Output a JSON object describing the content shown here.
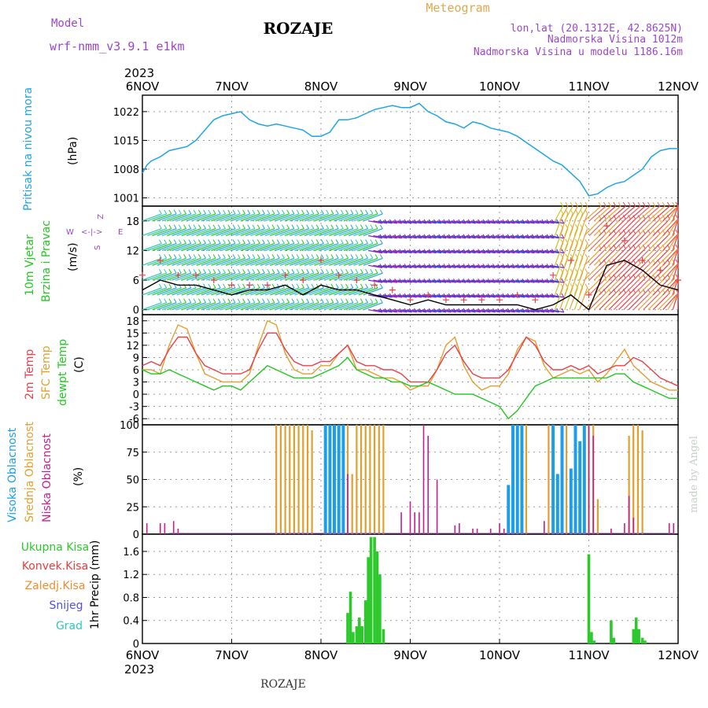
{
  "header": {
    "model_label": "Model",
    "model_name": "wrf-nmm_v3.9.1 e1km",
    "location": "ROZAJE",
    "kind": "Meteogram",
    "coords": "lon,lat (20.1312E, 42.8625N)",
    "elevation": "Nadmorska Visina 1012m",
    "model_elevation": "Nadmorska Visina u modelu 1186.16m",
    "year": "2023",
    "footer_location": "ROZAJE",
    "watermark": "made by Angel"
  },
  "colors": {
    "pressure": "#1ea5e8",
    "temp2m": "#e8404a",
    "sfc_temp": "#e0a030",
    "dewpoint": "#22c820",
    "high_cloud": "#1e9ee8",
    "mid_cloud": "#e0a030",
    "low_cloud": "#c81e8c",
    "precip_total": "#2cc82c",
    "convective": "#e83c3c",
    "freezing": "#f08c2c",
    "snow": "#5050e0",
    "graupel": "#2ec8c0",
    "wind_label": "#22c820",
    "compass": "#9a46c8",
    "gust": "#e8404a"
  },
  "chart_data": [
    {
      "type": "line",
      "panel": "pressure",
      "ylabel": "Pritisak na nivou mora",
      "yunit": "(hPa)",
      "x_unit": "days since 6NOV 00Z",
      "x_ticks": [
        "6NOV",
        "7NOV",
        "8NOV",
        "9NOV",
        "10NOV",
        "11NOV",
        "12NOV"
      ],
      "ylim": [
        999,
        1026
      ],
      "yticks": [
        1001,
        1008,
        1015,
        1022
      ],
      "series": [
        {
          "name": "MSLP",
          "x": [
            0,
            0.05,
            0.1,
            0.2,
            0.3,
            0.4,
            0.5,
            0.6,
            0.7,
            0.8,
            0.9,
            1.0,
            1.1,
            1.2,
            1.3,
            1.4,
            1.5,
            1.6,
            1.7,
            1.8,
            1.9,
            2.0,
            2.1,
            2.2,
            2.3,
            2.4,
            2.5,
            2.6,
            2.7,
            2.8,
            2.9,
            3.0,
            3.1,
            3.2,
            3.3,
            3.4,
            3.5,
            3.6,
            3.7,
            3.8,
            3.9,
            4.0,
            4.1,
            4.2,
            4.3,
            4.4,
            4.5,
            4.6,
            4.7,
            4.8,
            4.9,
            5.0,
            5.1,
            5.2,
            5.3,
            5.4,
            5.5,
            5.6,
            5.7,
            5.8,
            5.9,
            6.0
          ],
          "values": [
            1007,
            1009,
            1010,
            1011,
            1012.5,
            1013,
            1013.5,
            1015,
            1017.5,
            1020,
            1021,
            1021.5,
            1022,
            1020,
            1019,
            1018.5,
            1019,
            1018.5,
            1018,
            1017.5,
            1016,
            1016,
            1017,
            1020,
            1020,
            1020.5,
            1021.5,
            1022.5,
            1023,
            1023.5,
            1023,
            1023,
            1024,
            1022,
            1021,
            1019.5,
            1019,
            1018,
            1019.5,
            1019,
            1018,
            1017.5,
            1017,
            1016,
            1014.5,
            1013,
            1011.5,
            1010,
            1009,
            1007,
            1005,
            1001.5,
            1002,
            1003.5,
            1004.5,
            1005,
            1006.5,
            1008,
            1011,
            1012.5,
            1013,
            1013
          ]
        }
      ]
    },
    {
      "type": "line",
      "panel": "wind",
      "ylabel": "10m Vjetar Brzina i Pravac",
      "yunit": "(m/s)",
      "compass": {
        "w": "W",
        "e": "E",
        "n_arrow": "<-|->",
        "labels_v1": "Z",
        "labels_v2": "S"
      },
      "ylim": [
        -1,
        21
      ],
      "yticks": [
        0,
        6,
        12,
        18
      ],
      "series": [
        {
          "name": "speed",
          "x": [
            0,
            0.2,
            0.4,
            0.6,
            0.8,
            1.0,
            1.2,
            1.4,
            1.6,
            1.8,
            2.0,
            2.2,
            2.4,
            2.6,
            2.8,
            3.0,
            3.2,
            3.4,
            3.6,
            3.8,
            4.0,
            4.2,
            4.4,
            4.6,
            4.8,
            5.0,
            5.2,
            5.4,
            5.6,
            5.8,
            6.0
          ],
          "values": [
            4,
            6,
            5,
            5,
            4,
            3,
            4,
            4,
            5,
            3,
            5,
            4,
            4,
            3,
            2,
            1,
            2,
            1,
            1,
            1,
            1,
            1,
            0,
            1,
            3,
            0,
            9,
            10,
            8,
            5,
            4
          ]
        },
        {
          "name": "gust",
          "x": [
            0,
            0.2,
            0.4,
            0.6,
            0.8,
            1.0,
            1.2,
            1.4,
            1.6,
            1.8,
            2.0,
            2.2,
            2.4,
            2.6,
            2.8,
            3.0,
            3.2,
            3.4,
            3.6,
            3.8,
            4.0,
            4.2,
            4.4,
            4.6,
            4.8,
            5.0,
            5.2,
            5.4,
            5.6,
            5.8,
            6.0
          ],
          "values": [
            7,
            10,
            7,
            7,
            6,
            5,
            5,
            5,
            7,
            6,
            10,
            7,
            6,
            5,
            4,
            2,
            3,
            2,
            2,
            2,
            2,
            3,
            2,
            7,
            10,
            3,
            17,
            14,
            10,
            8,
            6
          ]
        }
      ]
    },
    {
      "type": "line",
      "panel": "temperature",
      "ylabel_1": "2m Temp",
      "ylabel_2": "SFC Temp",
      "ylabel_3": "dewpt Temp",
      "yunit": "(C)",
      "ylim": [
        -7.5,
        19.5
      ],
      "yticks": [
        -6,
        -3,
        0,
        3,
        6,
        9,
        12,
        15,
        18
      ],
      "series": [
        {
          "name": "2m Temp",
          "x": [
            0,
            0.1,
            0.2,
            0.3,
            0.4,
            0.5,
            0.6,
            0.7,
            0.8,
            0.9,
            1.0,
            1.1,
            1.2,
            1.3,
            1.4,
            1.5,
            1.6,
            1.7,
            1.8,
            1.9,
            2.0,
            2.1,
            2.2,
            2.3,
            2.4,
            2.5,
            2.6,
            2.7,
            2.8,
            2.9,
            3.0,
            3.1,
            3.2,
            3.3,
            3.4,
            3.5,
            3.6,
            3.7,
            3.8,
            3.9,
            4.0,
            4.1,
            4.2,
            4.3,
            4.4,
            4.5,
            4.6,
            4.7,
            4.8,
            4.9,
            5.0,
            5.1,
            5.2,
            5.3,
            5.4,
            5.5,
            5.6,
            5.7,
            5.8,
            5.9,
            6.0
          ],
          "values": [
            7,
            8,
            7,
            11,
            14,
            14,
            10,
            7,
            6,
            5,
            5,
            5,
            6,
            11,
            15,
            15,
            11,
            8,
            7,
            7,
            8,
            8,
            10,
            12,
            8,
            7,
            7,
            6,
            6,
            5,
            3,
            3,
            3,
            6,
            10,
            12,
            8,
            5,
            4,
            4,
            4,
            6,
            10,
            14,
            12,
            8,
            6,
            6,
            7,
            6,
            7,
            5,
            6,
            7,
            7,
            9,
            8,
            6,
            4,
            3,
            2
          ]
        },
        {
          "name": "SFC Temp",
          "x": [
            0,
            0.1,
            0.2,
            0.3,
            0.4,
            0.5,
            0.6,
            0.7,
            0.8,
            0.9,
            1.0,
            1.1,
            1.2,
            1.3,
            1.4,
            1.5,
            1.6,
            1.7,
            1.8,
            1.9,
            2.0,
            2.1,
            2.2,
            2.3,
            2.4,
            2.5,
            2.6,
            2.7,
            2.8,
            2.9,
            3.0,
            3.1,
            3.2,
            3.3,
            3.4,
            3.5,
            3.6,
            3.7,
            3.8,
            3.9,
            4.0,
            4.1,
            4.2,
            4.3,
            4.4,
            4.5,
            4.6,
            4.7,
            4.8,
            4.9,
            5.0,
            5.1,
            5.2,
            5.3,
            5.4,
            5.5,
            5.6,
            5.7,
            5.8,
            5.9,
            6.0
          ],
          "values": [
            6,
            6,
            5,
            12,
            17,
            16,
            10,
            5,
            4,
            3,
            3,
            3,
            5,
            12,
            18,
            17,
            10,
            6,
            5,
            5,
            7,
            7,
            10,
            12,
            6,
            6,
            5,
            4,
            4,
            3,
            1,
            2,
            2,
            6,
            12,
            14,
            7,
            3,
            1,
            2,
            2,
            5,
            11,
            14,
            13,
            7,
            4,
            5,
            6,
            5,
            6,
            3,
            5,
            8,
            11,
            7,
            5,
            3,
            2,
            1,
            1
          ]
        },
        {
          "name": "dewpt Temp",
          "x": [
            0,
            0.1,
            0.2,
            0.3,
            0.4,
            0.5,
            0.6,
            0.7,
            0.8,
            0.9,
            1.0,
            1.1,
            1.2,
            1.3,
            1.4,
            1.5,
            1.6,
            1.7,
            1.8,
            1.9,
            2.0,
            2.1,
            2.2,
            2.3,
            2.4,
            2.5,
            2.6,
            2.7,
            2.8,
            2.9,
            3.0,
            3.1,
            3.2,
            3.3,
            3.4,
            3.5,
            3.6,
            3.7,
            3.8,
            3.9,
            4.0,
            4.1,
            4.2,
            4.3,
            4.4,
            4.5,
            4.6,
            4.7,
            4.8,
            4.9,
            5.0,
            5.1,
            5.2,
            5.3,
            5.4,
            5.5,
            5.6,
            5.7,
            5.8,
            5.9,
            6.0
          ],
          "values": [
            6,
            5,
            5,
            6,
            5,
            4,
            3,
            2,
            1,
            2,
            2,
            1,
            3,
            5,
            7,
            6,
            5,
            4,
            4,
            4,
            5,
            6,
            7,
            9,
            6,
            5,
            4,
            4,
            3,
            3,
            2,
            2,
            3,
            2,
            1,
            0,
            0,
            0,
            -1,
            -2,
            -3,
            -6,
            -4,
            -1,
            2,
            3,
            4,
            4,
            4,
            4,
            4,
            4,
            4,
            5,
            5,
            3,
            2,
            1,
            0,
            -1,
            -1
          ]
        }
      ]
    },
    {
      "type": "bar",
      "panel": "cloud",
      "ylabel_1": "Visoka Oblacnost",
      "ylabel_2": "Srednja Oblacnost",
      "ylabel_3": "Niska Oblacnost",
      "yunit": "(%)",
      "ylim": [
        0,
        100
      ],
      "yticks": [
        0,
        25,
        50,
        75,
        100
      ],
      "series": [
        {
          "name": "Visoka",
          "x": [
            2.05,
            2.1,
            2.15,
            2.2,
            2.25,
            4.1,
            4.15,
            4.2,
            4.25,
            4.6,
            4.65,
            4.7,
            4.8,
            4.85,
            4.9,
            4.95
          ],
          "values": [
            100,
            100,
            100,
            100,
            100,
            45,
            100,
            100,
            100,
            100,
            55,
            100,
            60,
            100,
            85,
            100
          ]
        },
        {
          "name": "Srednja",
          "x": [
            1.5,
            1.55,
            1.6,
            1.65,
            1.7,
            1.75,
            1.8,
            1.85,
            1.9,
            2.3,
            2.35,
            2.4,
            2.45,
            2.5,
            2.55,
            2.6,
            2.65,
            2.7,
            4.3,
            4.55,
            4.75,
            5.0,
            5.05,
            5.1,
            5.45,
            5.5,
            5.55,
            5.6
          ],
          "values": [
            100,
            100,
            100,
            100,
            100,
            100,
            100,
            100,
            95,
            100,
            55,
            100,
            100,
            100,
            100,
            100,
            100,
            100,
            100,
            100,
            100,
            100,
            100,
            32,
            90,
            100,
            100,
            95
          ]
        },
        {
          "name": "Niska",
          "x": [
            0.05,
            0.2,
            0.25,
            0.35,
            0.4,
            2.3,
            2.9,
            3.0,
            3.05,
            3.1,
            3.15,
            3.2,
            3.3,
            3.5,
            3.55,
            3.7,
            3.75,
            3.9,
            4.0,
            4.05,
            4.5,
            5.0,
            5.05,
            5.25,
            5.4,
            5.45,
            5.5,
            5.9,
            5.95
          ],
          "values": [
            10,
            10,
            10,
            12,
            5,
            55,
            20,
            30,
            20,
            20,
            100,
            90,
            50,
            8,
            10,
            5,
            5,
            5,
            10,
            5,
            12,
            100,
            90,
            5,
            10,
            35,
            15,
            10,
            10
          ]
        }
      ]
    },
    {
      "type": "bar",
      "panel": "precipitation",
      "ylabel_1": "Ukupna Kisa",
      "ylabel_2": "Konvek.Kisa",
      "ylabel_3": "Zaledj.Kisa",
      "ylabel_4": "Snijeg",
      "ylabel_5": "Grad",
      "yunit": "1hr Precip (mm)",
      "ylim": [
        0,
        1.9
      ],
      "yticks": [
        0,
        0.4,
        0.8,
        1.2,
        1.6
      ],
      "series": [
        {
          "name": "Ukupna Kisa",
          "x": [
            2.3,
            2.33,
            2.36,
            2.4,
            2.43,
            2.46,
            2.5,
            2.53,
            2.56,
            2.6,
            2.63,
            2.66,
            2.7,
            5.0,
            5.03,
            5.06,
            5.25,
            5.28,
            5.5,
            5.53,
            5.56,
            5.6,
            5.63
          ],
          "values": [
            0.53,
            0.9,
            0.2,
            0.3,
            0.45,
            0.3,
            0.75,
            1.5,
            1.85,
            1.85,
            1.6,
            1.2,
            0.25,
            1.55,
            0.2,
            0.05,
            0.4,
            0.1,
            0.25,
            0.45,
            0.25,
            0.1,
            0.05
          ]
        }
      ]
    }
  ]
}
